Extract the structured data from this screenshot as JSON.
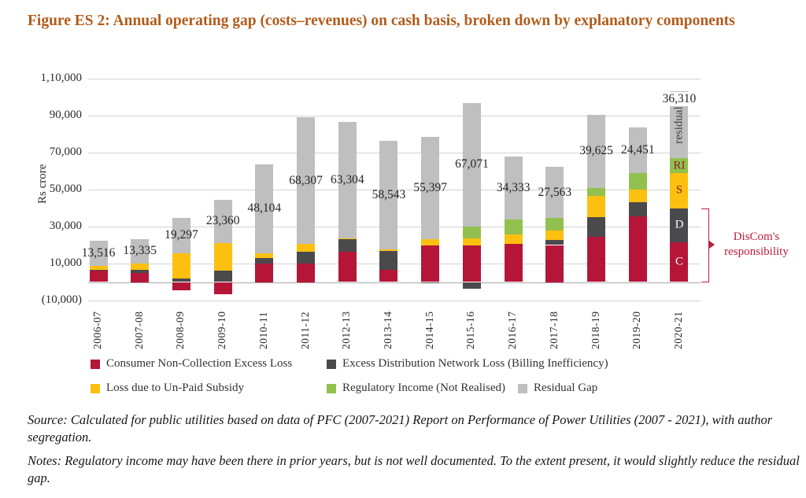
{
  "figure": {
    "title": "Figure ES 2: Annual operating gap (costs–revenues) on cash basis, broken down by explanatory components",
    "source": "Source: Calculated for public utilities based on data of PFC (2007-2021) Report on Performance of Power Utilities (2007 - 2021), with author segregation.",
    "notes": "Notes: Regulatory income may have been there in prior years, but is not well documented. To the extent present, it would slightly reduce the residual gap."
  },
  "chart_data": {
    "type": "bar",
    "stacked": true,
    "ylabel": "Rs crore",
    "ylim": [
      -10000,
      110000
    ],
    "grid": true,
    "legend_position": "bottom",
    "categories": [
      "2006-07",
      "2007-08",
      "2008-09",
      "2009-10",
      "2010-11",
      "2011-12",
      "2012-13",
      "2013-14",
      "2014-15",
      "2015-16",
      "2016-17",
      "2017-18",
      "2018-19",
      "2019-20",
      "2020-21"
    ],
    "series": [
      {
        "name": "Consumer Non-Collection Excess Loss",
        "color": "#b51638",
        "values": [
          6400,
          5000,
          -4500,
          -6800,
          10000,
          10000,
          16500,
          6700,
          19800,
          19900,
          20800,
          20000,
          24300,
          35600,
          21600
        ]
      },
      {
        "name": "Excess Distribution Network Loss (Billing Inefficiency)",
        "color": "#4a4a4c",
        "values": [
          400,
          1400,
          1900,
          6200,
          2900,
          6400,
          6500,
          10200,
          -800,
          -3500,
          0,
          2900,
          10700,
          7800,
          18200
        ]
      },
      {
        "name": "Loss due to Un-Paid Subsidy",
        "color": "#fdc011",
        "values": [
          2100,
          3600,
          13600,
          14900,
          2800,
          4300,
          500,
          800,
          3200,
          3600,
          5000,
          5000,
          11400,
          6400,
          19200
        ]
      },
      {
        "name": "Regulatory Income (Not Realised)",
        "color": "#92c04e",
        "values": [
          0,
          0,
          0,
          0,
          0,
          0,
          0,
          0,
          0,
          6400,
          7900,
          6700,
          4500,
          9300,
          7900
        ]
      },
      {
        "name": "Residual Gap",
        "color": "#bfbfbf",
        "values": [
          13516,
          13335,
          19297,
          23360,
          48104,
          68307,
          63304,
          58543,
          55397,
          67071,
          34333,
          27563,
          39625,
          24451,
          36310
        ]
      }
    ],
    "bar_labels": [
      "13,516",
      "13,335",
      "19,297",
      "23,360",
      "48,104",
      "68,307",
      "63,304",
      "58,543",
      "55,397",
      "67,071",
      "34,333",
      "27,563",
      "39,625",
      "24,451",
      "36,310"
    ],
    "labelled_series": "Residual Gap",
    "y_ticks": [
      {
        "label": "1,10,000",
        "value": 110000
      },
      {
        "label": "90,000",
        "value": 90000
      },
      {
        "label": "70,000",
        "value": 70000
      },
      {
        "label": "50,000",
        "value": 50000
      },
      {
        "label": "30,000",
        "value": 30000
      },
      {
        "label": "10,000",
        "value": 10000
      },
      {
        "label": "(10,000)",
        "value": -10000
      }
    ],
    "last_bar_annotations": [
      {
        "series": 4,
        "text": "residual",
        "color": "#3f3f3f",
        "rotated": true
      },
      {
        "series": 3,
        "text": "RI",
        "color": "#8a1c2c",
        "rotated": false
      },
      {
        "series": 2,
        "text": "S",
        "color": "#8a1c2c",
        "rotated": false
      },
      {
        "series": 1,
        "text": "D",
        "color": "#ffffff",
        "rotated": false
      },
      {
        "series": 0,
        "text": "C",
        "color": "#ffffff",
        "rotated": false
      }
    ],
    "callout": {
      "line1": "DisCom's",
      "line2": "responsibility",
      "covers": [
        "C",
        "D"
      ]
    }
  },
  "colors": {
    "title": "#b25c1c",
    "grid": "#d4d4d4",
    "zero_axis": "#a8a8a8",
    "text": "#262626",
    "callout": "#bb1e3d"
  }
}
